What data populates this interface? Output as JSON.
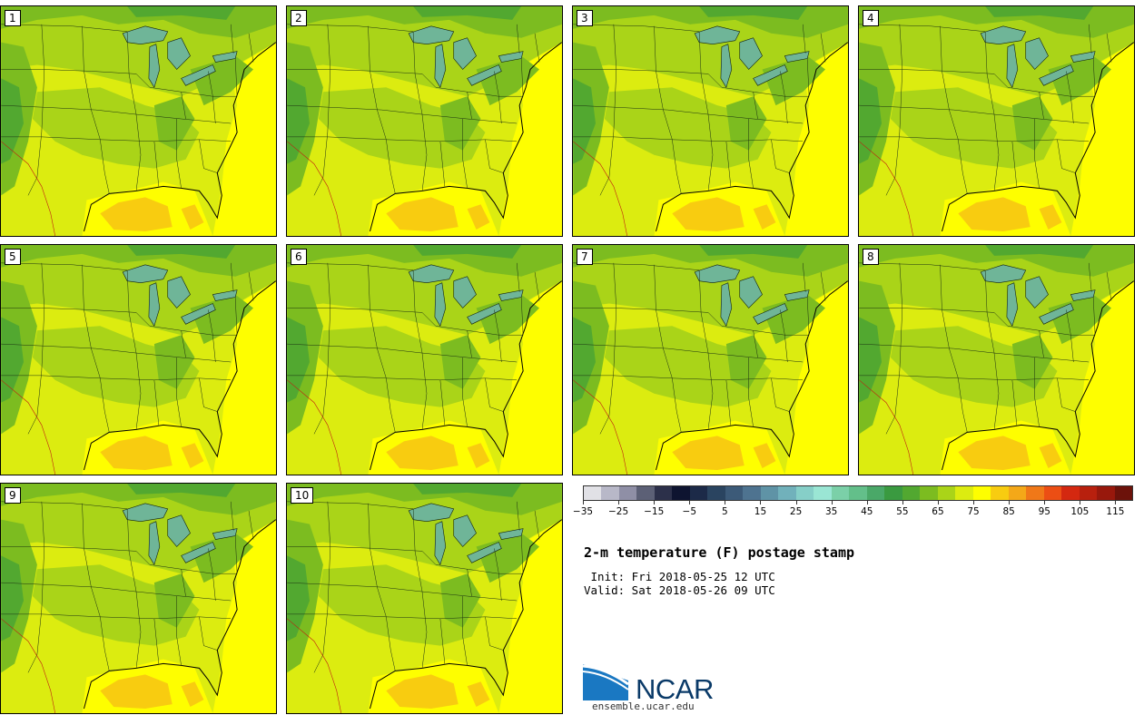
{
  "panels": [
    {
      "id": "panel-1",
      "label": "1"
    },
    {
      "id": "panel-2",
      "label": "2"
    },
    {
      "id": "panel-3",
      "label": "3"
    },
    {
      "id": "panel-4",
      "label": "4"
    },
    {
      "id": "panel-5",
      "label": "5"
    },
    {
      "id": "panel-6",
      "label": "6"
    },
    {
      "id": "panel-7",
      "label": "7"
    },
    {
      "id": "panel-8",
      "label": "8"
    },
    {
      "id": "panel-9",
      "label": "9"
    },
    {
      "id": "panel-10",
      "label": "10"
    }
  ],
  "colorbar": {
    "colors": [
      "#e1e1e6",
      "#b8b8c8",
      "#8f8fa6",
      "#5c6076",
      "#2c304a",
      "#0e1430",
      "#1c2a48",
      "#2a4460",
      "#3c5a78",
      "#4e7390",
      "#5f93a6",
      "#71b1bb",
      "#86cfc8",
      "#9ae6d4",
      "#7bd0a8",
      "#63bf8a",
      "#4aa868",
      "#3a9a40",
      "#52a830",
      "#7cbc20",
      "#aad418",
      "#dcec10",
      "#fefe00",
      "#f8cc10",
      "#f4a818",
      "#f07818",
      "#ec4e14",
      "#d42810",
      "#b8200e",
      "#98180c",
      "#6c120a"
    ],
    "tick_labels": [
      "−35",
      "−25",
      "−15",
      "−5",
      "5",
      "15",
      "25",
      "35",
      "45",
      "55",
      "65",
      "75",
      "85",
      "95",
      "105",
      "115"
    ]
  },
  "title": "2-m temperature (F) postage stamp",
  "init": " Init: Fri 2018-05-25 12 UTC",
  "valid": "Valid: Sat 2018-05-26 09 UTC",
  "logo": {
    "name": "NCAR",
    "url": "ensemble.ucar.edu"
  }
}
